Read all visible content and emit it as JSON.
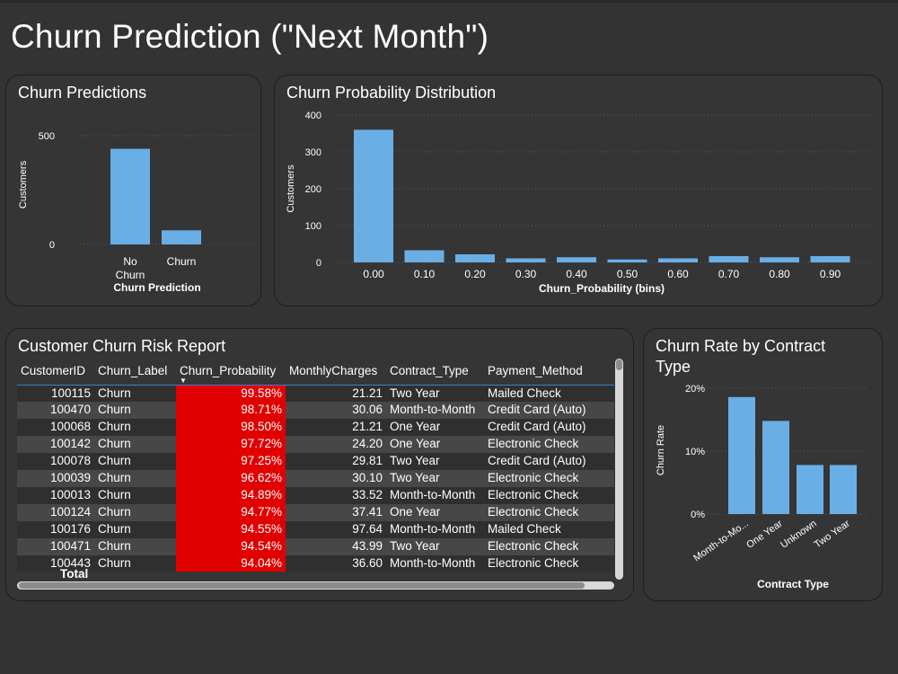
{
  "page": {
    "title": "Churn Prediction (\"Next Month\")"
  },
  "panels": {
    "churn_predictions": {
      "title": "Churn Predictions",
      "chart_data": {
        "type": "bar",
        "title": "Churn Predictions",
        "categories": [
          "No Churn",
          "Churn"
        ],
        "category_lines": [
          [
            "No",
            "Churn"
          ],
          [
            "Churn"
          ]
        ],
        "values": [
          440,
          65
        ],
        "xlabel": "Churn Prediction",
        "ylabel": "Customers",
        "yticks": [
          "0",
          "500"
        ],
        "ylim": [
          0,
          550
        ],
        "grid": true,
        "color": "#6aaee6"
      }
    },
    "probability_distribution": {
      "title": "Churn Probability Distribution",
      "chart_data": {
        "type": "bar",
        "title": "Churn Probability Distribution",
        "categories": [
          "0.00",
          "0.10",
          "0.20",
          "0.30",
          "0.40",
          "0.50",
          "0.60",
          "0.70",
          "0.80",
          "0.90"
        ],
        "values": [
          360,
          33,
          22,
          11,
          14,
          8,
          11,
          17,
          14,
          17
        ],
        "xlabel": "Churn_Probability (bins)",
        "ylabel": "Customers",
        "yticks": [
          "0",
          "100",
          "200",
          "300",
          "400"
        ],
        "ylim": [
          0,
          400
        ],
        "grid": true,
        "color": "#6aaee6"
      }
    },
    "risk_report": {
      "title": "Customer Churn Risk Report",
      "columns": [
        "CustomerID",
        "Churn_Label",
        "Churn_Probability",
        "MonthlyCharges",
        "Contract_Type",
        "Payment_Method"
      ],
      "sort_indicator": "▼",
      "rows": [
        [
          "100115",
          "Churn",
          "99.58%",
          "21.21",
          "Two Year",
          "Mailed Check"
        ],
        [
          "100470",
          "Churn",
          "98.71%",
          "30.06",
          "Month-to-Month",
          "Credit Card (Auto)"
        ],
        [
          "100068",
          "Churn",
          "98.50%",
          "21.21",
          "One Year",
          "Credit Card (Auto)"
        ],
        [
          "100142",
          "Churn",
          "97.72%",
          "24.20",
          "One Year",
          "Electronic Check"
        ],
        [
          "100078",
          "Churn",
          "97.25%",
          "29.81",
          "Two Year",
          "Credit Card (Auto)"
        ],
        [
          "100039",
          "Churn",
          "96.62%",
          "30.10",
          "Two Year",
          "Electronic Check"
        ],
        [
          "100013",
          "Churn",
          "94.89%",
          "33.52",
          "Month-to-Month",
          "Electronic Check"
        ],
        [
          "100124",
          "Churn",
          "94.77%",
          "37.41",
          "One Year",
          "Electronic Check"
        ],
        [
          "100176",
          "Churn",
          "94.55%",
          "97.64",
          "Month-to-Month",
          "Mailed Check"
        ],
        [
          "100471",
          "Churn",
          "94.54%",
          "43.99",
          "Two Year",
          "Electronic Check"
        ],
        [
          "100443",
          "Churn",
          "94.04%",
          "36.60",
          "Month-to-Month",
          "Electronic Check"
        ]
      ],
      "total_label": "Total",
      "highlight_color": "#e10000"
    },
    "churn_by_contract": {
      "title_lines": [
        "Churn Rate by Contract",
        "Type"
      ],
      "chart_data": {
        "type": "bar",
        "title": "Churn Rate by Contract Type",
        "categories": [
          "Month-to-Mo...",
          "One Year",
          "Unknown",
          "Two Year"
        ],
        "values": [
          0.186,
          0.148,
          0.078,
          0.078
        ],
        "xlabel": "Contract Type",
        "ylabel": "Churn Rate",
        "yticks": [
          "0%",
          "10%",
          "20%"
        ],
        "ylim": [
          0,
          0.2
        ],
        "grid": true,
        "color": "#6aaee6"
      }
    }
  }
}
